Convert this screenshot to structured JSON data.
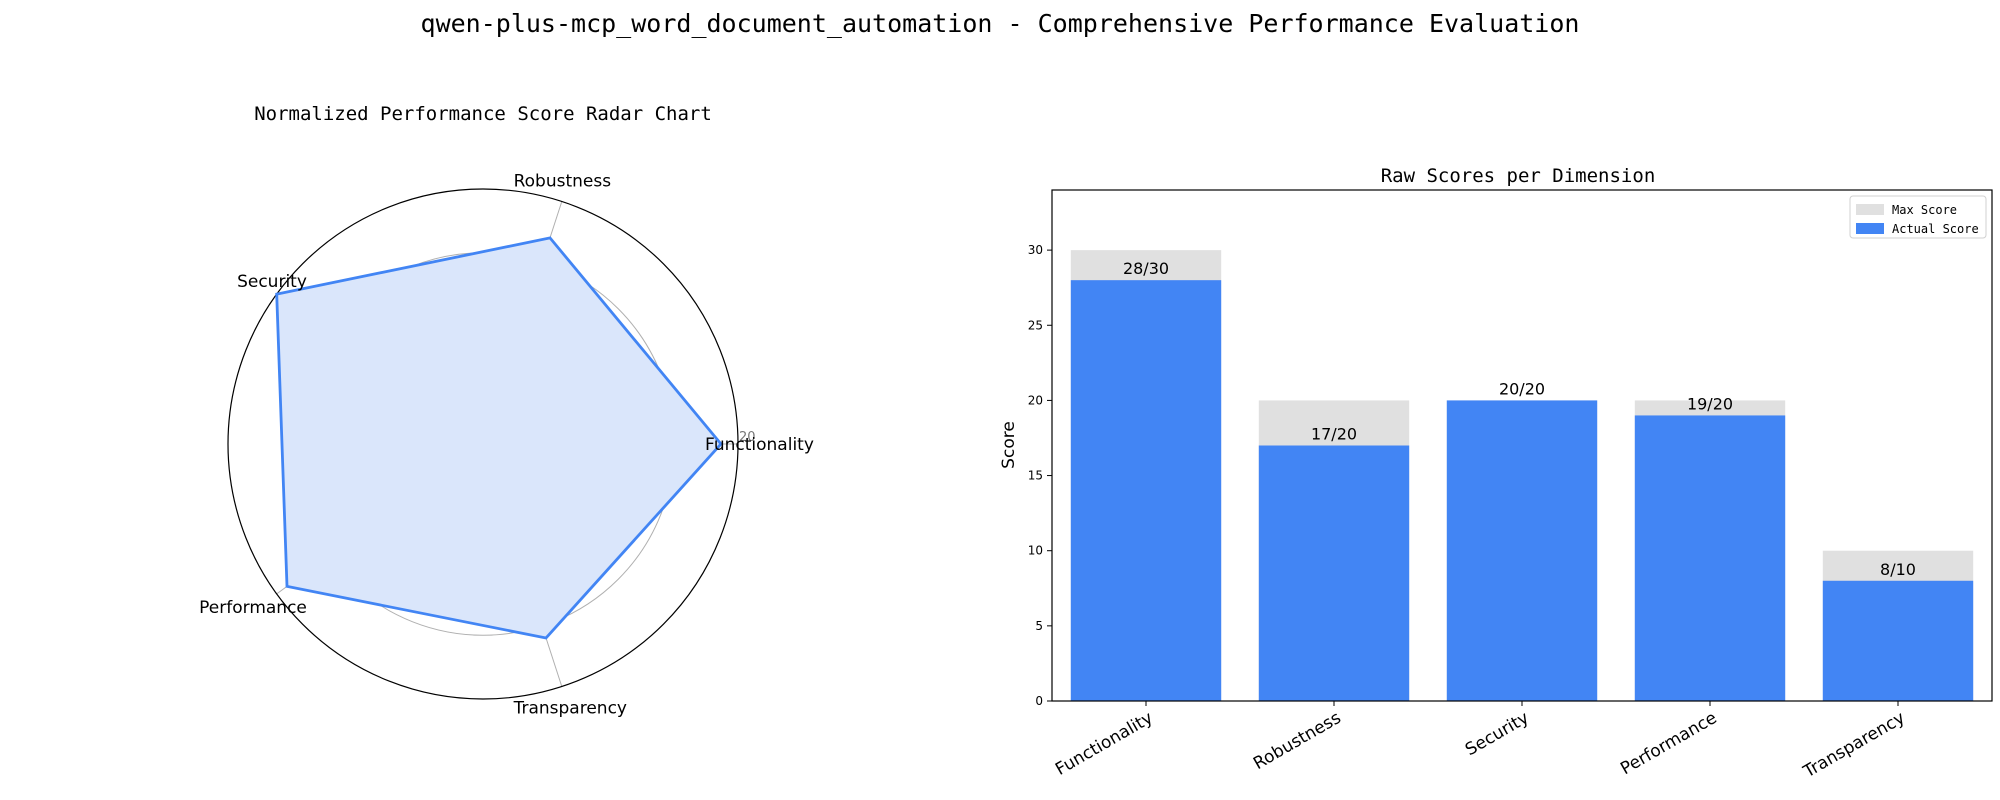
{
  "title": "qwen-plus-mcp_word_document_automation - Comprehensive Performance Evaluation",
  "colors": {
    "accent": "#4285f4",
    "radar_fill": "#dae6fb",
    "max_bar": "#e0e0e0",
    "grid": "#b0b0b0",
    "text": "#000000",
    "tick_text": "#777777"
  },
  "chart_data": [
    {
      "type": "radar",
      "title": "Normalized Performance Score Radar Chart",
      "axes": [
        "Functionality",
        "Robustness",
        "Security",
        "Performance",
        "Transparency"
      ],
      "values": [
        18.67,
        17,
        20,
        19,
        16
      ],
      "rlim": [
        0,
        20
      ],
      "rticks": [
        5,
        10,
        15,
        20
      ],
      "grid": true
    },
    {
      "type": "bar",
      "title": "Raw Scores per Dimension",
      "ylabel": "Score",
      "categories": [
        "Functionality",
        "Robustness",
        "Security",
        "Performance",
        "Transparency"
      ],
      "series": [
        {
          "name": "Max Score",
          "values": [
            30,
            20,
            20,
            20,
            10
          ]
        },
        {
          "name": "Actual Score",
          "values": [
            28,
            17,
            20,
            19,
            8
          ]
        }
      ],
      "data_labels": [
        "28/30",
        "17/20",
        "20/20",
        "19/20",
        "8/10"
      ],
      "ylim": [
        0,
        34
      ],
      "yticks": [
        0,
        5,
        10,
        15,
        20,
        25,
        30
      ],
      "legend": "top-right",
      "grid": false
    }
  ]
}
